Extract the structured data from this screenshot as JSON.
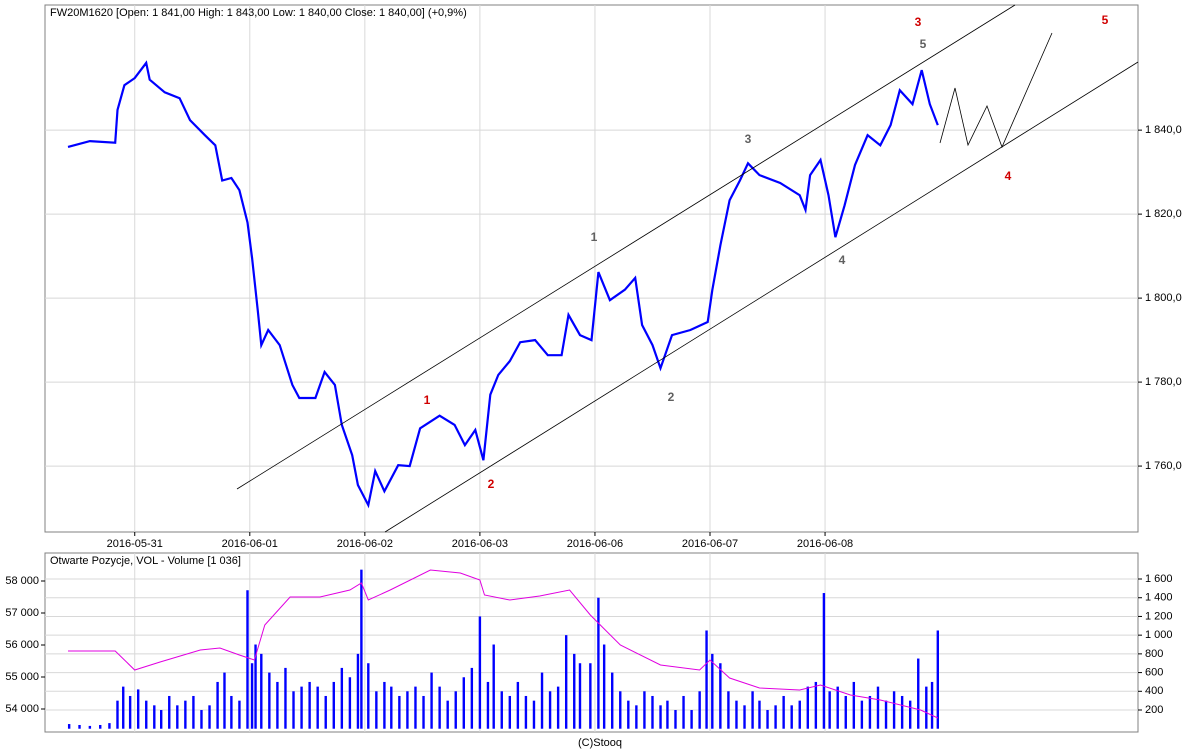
{
  "chart_data": [
    {
      "type": "line",
      "title": "FW20M1620 [Open: 1 841,00  High: 1 843,00  Low: 1 840,00  Close: 1 840,00] (+0,9%)",
      "xlim": [
        -0.78,
        8.72
      ],
      "xticks": [
        {
          "value": 0,
          "label": "2016-05-31"
        },
        {
          "value": 1,
          "label": "2016-06-01"
        },
        {
          "value": 2,
          "label": "2016-06-02"
        },
        {
          "value": 3,
          "label": "2016-06-03"
        },
        {
          "value": 4,
          "label": "2016-06-06"
        },
        {
          "value": 5,
          "label": "2016-06-07"
        },
        {
          "value": 6,
          "label": "2016-06-08"
        }
      ],
      "ylim": [
        1744.3,
        1869.8
      ],
      "yticks": [
        {
          "value": 1760,
          "label": "1 760,0"
        },
        {
          "value": 1780,
          "label": "1 780,0"
        },
        {
          "value": 1800,
          "label": "1 800,0"
        },
        {
          "value": 1820,
          "label": "1 820,0"
        },
        {
          "value": 1840,
          "label": "1 840,0"
        }
      ],
      "grid": true,
      "x": [
        -0.58,
        -0.39,
        -0.17,
        -0.15,
        -0.09,
        0,
        0.1,
        0.13,
        0.26,
        0.39,
        0.48,
        0.61,
        0.7,
        0.76,
        0.84,
        0.91,
        0.98,
        1.02,
        1.07,
        1.1,
        1.16,
        1.26,
        1.37,
        1.43,
        1.57,
        1.65,
        1.74,
        1.8,
        1.89,
        1.94,
        2.03,
        2.09,
        2.17,
        2.29,
        2.39,
        2.48,
        2.65,
        2.78,
        2.87,
        2.96,
        3.03,
        3.09,
        3.16,
        3.26,
        3.35,
        3.48,
        3.59,
        3.71,
        3.77,
        3.87,
        3.97,
        4.03,
        4.13,
        4.26,
        4.35,
        4.41,
        4.5,
        4.57,
        4.67,
        4.83,
        4.98,
        5.02,
        5.09,
        5.17,
        5.26,
        5.33,
        5.43,
        5.61,
        5.78,
        5.83,
        5.87,
        5.96,
        6.03,
        6.09,
        6.17,
        6.26,
        6.37,
        6.48,
        6.57,
        6.65,
        6.76,
        6.84,
        6.91,
        6.98
      ],
      "series": [
        {
          "color": "#0000ff",
          "values": [
            1836,
            1837.4,
            1837,
            1844.8,
            1850.7,
            1852.4,
            1856,
            1852,
            1849,
            1847.6,
            1842.4,
            1838.8,
            1836.4,
            1828,
            1828.6,
            1825.7,
            1818,
            1809.5,
            1797,
            1788.8,
            1792.4,
            1788.8,
            1779.3,
            1776.2,
            1776.2,
            1782.4,
            1779.3,
            1769.8,
            1762.6,
            1755.5,
            1750.7,
            1758.8,
            1754,
            1760.2,
            1760,
            1769,
            1772,
            1769.8,
            1765,
            1768.6,
            1761.4,
            1777,
            1781.7,
            1785,
            1789.5,
            1790,
            1786.4,
            1786.4,
            1796,
            1791.2,
            1790,
            1806.2,
            1799.5,
            1802,
            1804.8,
            1793.6,
            1788.8,
            1783.3,
            1791.2,
            1792.4,
            1794.3,
            1801.9,
            1812.6,
            1823.3,
            1828,
            1832.1,
            1829.3,
            1827.4,
            1824.5,
            1821,
            1829.3,
            1832.9,
            1824.5,
            1814.5,
            1822.1,
            1831.7,
            1838.8,
            1836.4,
            1841.2,
            1849.5,
            1846.2,
            1854.3,
            1846.2,
            1841.2
          ]
        }
      ],
      "annotations": [
        {
          "text": "3",
          "color": "#d00000"
        },
        {
          "text": "5",
          "color": "#606060"
        },
        {
          "text": "5",
          "color": "#d00000"
        },
        {
          "text": "3",
          "color": "#606060"
        },
        {
          "text": "4",
          "color": "#d00000"
        },
        {
          "text": "1",
          "color": "#606060"
        },
        {
          "text": "4",
          "color": "#606060"
        },
        {
          "text": "1",
          "color": "#d00000"
        },
        {
          "text": "2",
          "color": "#606060"
        },
        {
          "text": "2",
          "color": "#d00000"
        }
      ]
    },
    {
      "type": "combo",
      "title": "Otwarte Pozycje, VOL - Volume [1 036]",
      "xlim": [
        -0.78,
        8.72
      ],
      "xticks": [
        0,
        1,
        2,
        3,
        4,
        5,
        6
      ],
      "ylim": [
        53281,
        58875
      ],
      "yticks": [
        {
          "value": 54000,
          "label": "54 000"
        },
        {
          "value": 55000,
          "label": "55 000"
        },
        {
          "value": 56000,
          "label": "56 000"
        },
        {
          "value": 57000,
          "label": "57 000"
        },
        {
          "value": 58000,
          "label": "58 000"
        }
      ],
      "y2lim": [
        -35,
        1878
      ],
      "y2ticks": [
        200,
        400,
        600,
        800,
        {
          "value": 1000,
          "label": "1 000"
        },
        {
          "value": 1200,
          "label": "1 200"
        },
        {
          "value": 1400,
          "label": "1 400"
        },
        {
          "value": 1600,
          "label": "1 600"
        }
      ],
      "grid": true,
      "series": [
        {
          "type": "bar",
          "axis": "y2",
          "color": "#0000ff",
          "x": [
            -0.57,
            -0.48,
            -0.39,
            -0.3,
            -0.22,
            -0.15,
            -0.1,
            -0.04,
            0.03,
            0.1,
            0.17,
            0.23,
            0.3,
            0.37,
            0.44,
            0.51,
            0.58,
            0.65,
            0.72,
            0.78,
            0.84,
            0.91,
            0.98,
            1.02,
            1.05,
            1.1,
            1.17,
            1.24,
            1.31,
            1.38,
            1.45,
            1.52,
            1.59,
            1.66,
            1.73,
            1.8,
            1.87,
            1.94,
            1.97,
            2.03,
            2.1,
            2.17,
            2.23,
            2.3,
            2.37,
            2.44,
            2.51,
            2.58,
            2.65,
            2.72,
            2.79,
            2.86,
            2.93,
            3.0,
            3.07,
            3.12,
            3.19,
            3.26,
            3.33,
            3.4,
            3.47,
            3.54,
            3.61,
            3.68,
            3.75,
            3.82,
            3.87,
            3.96,
            4.03,
            4.08,
            4.15,
            4.22,
            4.29,
            4.36,
            4.43,
            4.5,
            4.57,
            4.63,
            4.7,
            4.77,
            4.84,
            4.91,
            4.97,
            5.02,
            5.09,
            5.16,
            5.23,
            5.3,
            5.37,
            5.43,
            5.5,
            5.57,
            5.64,
            5.71,
            5.78,
            5.85,
            5.92,
            5.99,
            6.04,
            6.11,
            6.18,
            6.25,
            6.32,
            6.39,
            6.46,
            6.53,
            6.6,
            6.67,
            6.74,
            6.81,
            6.88,
            6.93,
            6.98
          ],
          "values": [
            50,
            40,
            30,
            40,
            60,
            300,
            450,
            350,
            420,
            300,
            250,
            200,
            350,
            250,
            300,
            350,
            200,
            250,
            500,
            600,
            350,
            300,
            1480,
            700,
            900,
            800,
            600,
            500,
            650,
            400,
            450,
            500,
            450,
            350,
            500,
            650,
            550,
            800,
            1700,
            700,
            400,
            500,
            450,
            350,
            400,
            450,
            350,
            600,
            450,
            300,
            400,
            550,
            650,
            1200,
            500,
            900,
            400,
            350,
            500,
            350,
            300,
            600,
            400,
            450,
            1000,
            800,
            700,
            700,
            1400,
            900,
            600,
            400,
            300,
            250,
            400,
            350,
            250,
            300,
            200,
            350,
            200,
            400,
            1050,
            800,
            700,
            400,
            300,
            250,
            400,
            300,
            200,
            250,
            350,
            250,
            300,
            450,
            500,
            1450,
            400,
            450,
            350,
            500,
            300,
            350,
            450,
            300,
            400,
            350,
            300,
            750,
            450,
            500,
            1050
          ]
        },
        {
          "type": "line",
          "color": "#e000e0",
          "x": [
            -0.58,
            -0.17,
            0,
            0.22,
            0.57,
            0.74,
            0.91,
            1.04,
            1.13,
            1.35,
            1.61,
            1.87,
            1.97,
            2.03,
            2.22,
            2.57,
            2.83,
            3.0,
            3.04,
            3.26,
            3.52,
            3.78,
            3.96,
            4.22,
            4.57,
            4.91,
            5.0,
            5.17,
            5.43,
            5.78,
            5.96,
            6.22,
            6.48,
            6.83,
            6.98
          ],
          "values": [
            55812,
            55812,
            55219,
            55469,
            55844,
            55906,
            55688,
            55531,
            56625,
            57500,
            57500,
            57719,
            57938,
            57406,
            57719,
            58344,
            58250,
            58031,
            57563,
            57406,
            57531,
            57719,
            56938,
            56000,
            55375,
            55219,
            55531,
            54969,
            54656,
            54594,
            54750,
            54438,
            54281,
            53969,
            53719
          ]
        }
      ]
    }
  ],
  "footer": "(C)Stooq"
}
